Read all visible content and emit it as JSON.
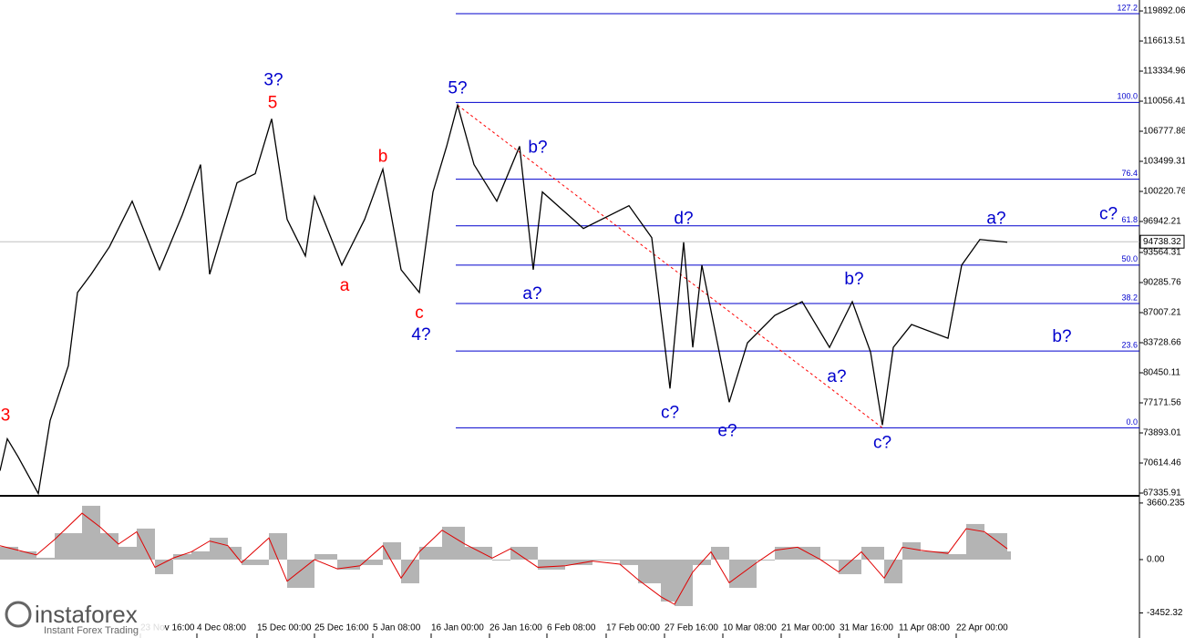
{
  "brand": {
    "name": "instaforex",
    "tagline": "Instant Forex Trading"
  },
  "chart_data": [
    {
      "type": "line",
      "xlim": [
        0,
        1250
      ],
      "ylim": [
        67137,
        121088
      ],
      "yticks": [
        119892.06,
        116613.51,
        113334.96,
        110056.41,
        106777.86,
        103499.31,
        100220.76,
        96942.21,
        93564.31,
        90285.76,
        87007.21,
        83728.66,
        80450.11,
        77171.56,
        73893.01,
        70614.46,
        67335.91
      ],
      "x": [
        0,
        8,
        20,
        42,
        55,
        75,
        85,
        100,
        120,
        145,
        175,
        200,
        220,
        230,
        260,
        280,
        298,
        315,
        335,
        345,
        375,
        400,
        420,
        440,
        460,
        475,
        490,
        502,
        520,
        545,
        570,
        585,
        595,
        640,
        690,
        715,
        735,
        750,
        760,
        770,
        800,
        820,
        850,
        880,
        910,
        935,
        955,
        968,
        980,
        1000,
        1040,
        1055,
        1075,
        1105
      ],
      "series": [
        {
          "color": "#000000",
          "values": [
            69768,
            73256,
            71264,
            67277,
            75249,
            81226,
            89200,
            91192,
            94182,
            99164,
            91690,
            97669,
            103150,
            91192,
            101157,
            102154,
            108132,
            97171,
            93185,
            99662,
            92190,
            97171,
            102652,
            91690,
            89200,
            100161,
            105143,
            109627,
            103150,
            99164,
            105143,
            91690,
            100161,
            96175,
            98666,
            95179,
            78737,
            94681,
            83221,
            92190,
            77242,
            83719,
            86709,
            88204,
            83221,
            88204,
            82723,
            74751,
            83221,
            85712,
            84218,
            92190,
            94981,
            94681
          ]
        }
      ],
      "last_price": 94738.32,
      "fib_color": "#0000cd",
      "fib_start": 500,
      "fib_levels": [
        {
          "label": "127.2",
          "price": 119593
        },
        {
          "label": "100.0",
          "price": 109927
        },
        {
          "label": "76.4",
          "price": 101556
        },
        {
          "label": "61.8",
          "price": 96474
        },
        {
          "label": "50.0",
          "price": 92190
        },
        {
          "label": "38.2",
          "price": 88004
        },
        {
          "label": "23.6",
          "price": 82822
        },
        {
          "label": "0.0",
          "price": 74451
        }
      ],
      "trendline": {
        "color": "#ff0000",
        "x": [
          502,
          968
        ],
        "y": [
          109627,
          74451
        ]
      },
      "annotations": [
        {
          "text": "3",
          "color": "#ff0000",
          "x": 6,
          "y": 75747
        },
        {
          "text": "3?",
          "color": "#0000cd",
          "x": 300,
          "y": 112319
        },
        {
          "text": "5",
          "color": "#ff0000",
          "x": 299,
          "y": 109828
        },
        {
          "text": "b",
          "color": "#ff0000",
          "x": 420,
          "y": 103948
        },
        {
          "text": "a",
          "color": "#ff0000",
          "x": 378,
          "y": 89897
        },
        {
          "text": "c",
          "color": "#ff0000",
          "x": 460,
          "y": 86908
        },
        {
          "text": "4?",
          "color": "#0000cd",
          "x": 462,
          "y": 84516
        },
        {
          "text": "5?",
          "color": "#0000cd",
          "x": 502,
          "y": 111422
        },
        {
          "text": "b?",
          "color": "#0000cd",
          "x": 590,
          "y": 104945
        },
        {
          "text": "a?",
          "color": "#0000cd",
          "x": 584,
          "y": 88999
        },
        {
          "text": "d?",
          "color": "#0000cd",
          "x": 750,
          "y": 97172
        },
        {
          "text": "c?",
          "color": "#0000cd",
          "x": 735,
          "y": 76046
        },
        {
          "text": "e?",
          "color": "#0000cd",
          "x": 798,
          "y": 74053
        },
        {
          "text": "b?",
          "color": "#0000cd",
          "x": 937,
          "y": 90595
        },
        {
          "text": "a?",
          "color": "#0000cd",
          "x": 918,
          "y": 79932
        },
        {
          "text": "c?",
          "color": "#0000cd",
          "x": 968,
          "y": 72758
        },
        {
          "text": "a?",
          "color": "#0000cd",
          "x": 1093,
          "y": 97172
        },
        {
          "text": "c?",
          "color": "#0000cd",
          "x": 1216,
          "y": 97670
        },
        {
          "text": "b?",
          "color": "#0000cd",
          "x": 1165,
          "y": 84317
        }
      ]
    },
    {
      "type": "macd",
      "xlim": [
        0,
        1250
      ],
      "ylim": [
        -4780,
        3890
      ],
      "yticks": [
        3660.235,
        {
          "value": 0,
          "label": "0.00"
        },
        -3452.32
      ],
      "xticks": [
        {
          "value": 154,
          "label": "23 Nov 16:00"
        },
        {
          "value": 216,
          "label": "4 Dec 08:00"
        },
        {
          "value": 282,
          "label": "15 Dec 00:00"
        },
        {
          "value": 345,
          "label": "25 Dec 16:00"
        },
        {
          "value": 409,
          "label": "5 Jan 08:00"
        },
        {
          "value": 473,
          "label": "16 Jan 00:00"
        },
        {
          "value": 537,
          "label": "26 Jan 16:00"
        },
        {
          "value": 600,
          "label": "6 Feb 08:00"
        },
        {
          "value": 665,
          "label": "17 Feb 00:00"
        },
        {
          "value": 729,
          "label": "27 Feb 16:00"
        },
        {
          "value": 793,
          "label": "10 Mar 08:00"
        },
        {
          "value": 857,
          "label": "21 Mar 00:00"
        },
        {
          "value": 921,
          "label": "31 Mar 16:00"
        },
        {
          "value": 986,
          "label": "11 Apr 08:00"
        },
        {
          "value": 1049,
          "label": "22 Apr 00:00"
        }
      ],
      "x": [
        0,
        20,
        40,
        60,
        90,
        110,
        130,
        150,
        170,
        190,
        210,
        230,
        250,
        265,
        295,
        315,
        345,
        370,
        395,
        420,
        440,
        460,
        485,
        510,
        540,
        560,
        590,
        620,
        650,
        680,
        700,
        725,
        740,
        760,
        780,
        800,
        830,
        850,
        875,
        900,
        920,
        945,
        970,
        990,
        1010,
        1040,
        1060,
        1080,
        1105
      ],
      "series": [
        {
          "style": "bar",
          "color": "#b4b4b4",
          "values": [
            826,
            531,
            118,
            1711,
            3481,
            1711,
            826,
            2006,
            -944,
            354,
            531,
            1416,
            826,
            -354,
            1711,
            -1829,
            354,
            -649,
            -354,
            1121,
            -1534,
            826,
            2124,
            826,
            -59,
            826,
            -649,
            -354,
            -59,
            -354,
            -1534,
            -2714,
            -3009,
            -354,
            826,
            -1829,
            -59,
            826,
            826,
            -59,
            -944,
            826,
            -1534,
            1121,
            531,
            354,
            2301,
            1711,
            531
          ]
        },
        {
          "style": "line",
          "color": "#e00000",
          "values": [
            900,
            600,
            300,
            1300,
            3000,
            2100,
            1000,
            1800,
            -500,
            100,
            500,
            1200,
            900,
            -200,
            1400,
            -1400,
            0,
            -600,
            -400,
            900,
            -1200,
            500,
            1900,
            1000,
            100,
            700,
            -500,
            -400,
            -100,
            -300,
            -1300,
            -2400,
            -2900,
            -800,
            500,
            -1500,
            -200,
            600,
            800,
            0,
            -800,
            500,
            -1200,
            800,
            600,
            400,
            2000,
            1800,
            700
          ]
        }
      ]
    }
  ]
}
